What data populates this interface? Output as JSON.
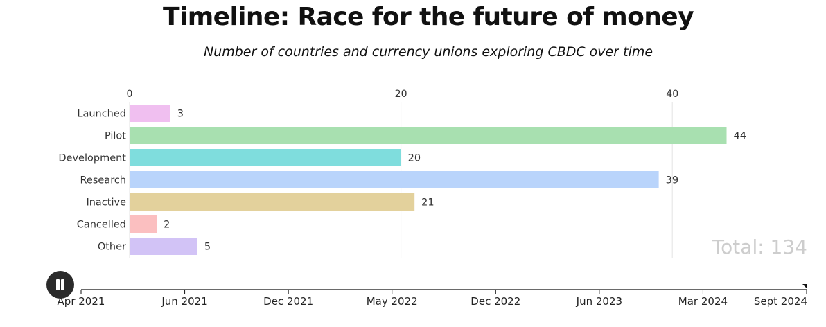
{
  "title": "Timeline: Race for the future of money",
  "subtitle": "Number of countries and currency unions exploring CBDC over time",
  "total_label": "Total: 134",
  "controls": {
    "play_pause_icon": "pause-icon"
  },
  "timeline": {
    "ticks": [
      "Apr 2021",
      "Jun 2021",
      "Dec 2021",
      "May 2022",
      "Dec 2022",
      "Jun 2023",
      "Mar 2024",
      "Sept 2024"
    ],
    "position_fraction": 1.0
  },
  "chart_data": {
    "type": "bar",
    "orientation": "horizontal",
    "categories": [
      "Launched",
      "Pilot",
      "Development",
      "Research",
      "Inactive",
      "Cancelled",
      "Other"
    ],
    "values": [
      3,
      44,
      20,
      39,
      21,
      2,
      5
    ],
    "colors": [
      "#f0bff0",
      "#a8e0b0",
      "#7fdddd",
      "#b9d4fb",
      "#e3d19c",
      "#fbbfc0",
      "#d2c3f6"
    ],
    "xlim": [
      0,
      50
    ],
    "xticks": [
      0,
      20,
      40
    ],
    "grid": true,
    "xaxis_position": "top"
  }
}
